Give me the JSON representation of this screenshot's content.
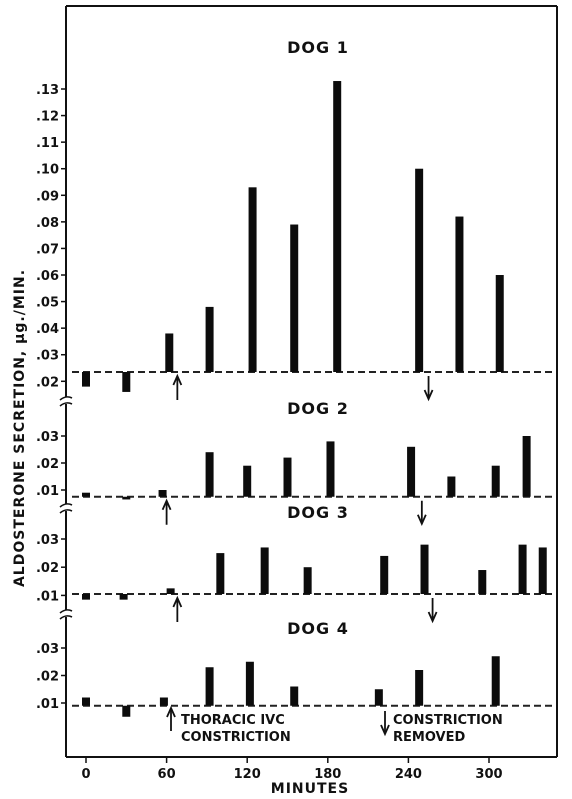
{
  "chart_data": {
    "type": "bar",
    "ylabel": "ALDOSTERONE SECRETION, μg./MIN.",
    "xlabel": "MINUTES",
    "x_ticks": [
      "0",
      "60",
      "120",
      "180",
      "240",
      "300"
    ],
    "x_tick_values": [
      0,
      60,
      120,
      180,
      240,
      300
    ],
    "xlim": [
      -10,
      345
    ],
    "annotations": {
      "arrow_up": "THORACIC IVC CONSTRICTION",
      "arrow_up_line1": "THORACIC IVC",
      "arrow_up_line2": "CONSTRICTION",
      "arrow_down": "CONSTRICTION REMOVED",
      "arrow_down_line1": "CONSTRICTION",
      "arrow_down_line2": "REMOVED"
    },
    "panels": [
      {
        "title": "DOG 1",
        "baseline": 0.0235,
        "ylim": [
          0.015,
          0.1375
        ],
        "y_ticks": [
          ".02",
          ".03",
          ".04",
          ".05",
          ".06",
          ".07",
          ".08",
          ".09",
          ".10",
          ".11",
          ".12",
          ".13"
        ],
        "y_tick_values": [
          0.02,
          0.03,
          0.04,
          0.05,
          0.06,
          0.07,
          0.08,
          0.09,
          0.1,
          0.11,
          0.12,
          0.13
        ],
        "x": [
          0,
          30,
          62,
          92,
          124,
          155,
          187,
          248,
          278,
          308
        ],
        "values": [
          0.018,
          0.016,
          0.038,
          0.048,
          0.093,
          0.079,
          0.133,
          0.1,
          0.082,
          0.06
        ],
        "arrow_up_x": 68,
        "arrow_down_x": 255
      },
      {
        "title": "DOG 2",
        "baseline": 0.0075,
        "ylim": [
          0.002,
          0.036
        ],
        "y_ticks": [
          ".01",
          ".02",
          ".03"
        ],
        "y_tick_values": [
          0.01,
          0.02,
          0.03
        ],
        "x": [
          0,
          30,
          57,
          92,
          120,
          150,
          182,
          242,
          272,
          305,
          328
        ],
        "values": [
          0.009,
          0.0065,
          0.01,
          0.024,
          0.019,
          0.022,
          0.028,
          0.026,
          0.015,
          0.019,
          0.03
        ],
        "arrow_up_x": 60,
        "arrow_down_x": 250
      },
      {
        "title": "DOG 3",
        "baseline": 0.0105,
        "ylim": [
          0.0025,
          0.036
        ],
        "y_ticks": [
          ".01",
          ".02",
          ".03"
        ],
        "y_tick_values": [
          0.01,
          0.02,
          0.03
        ],
        "x": [
          0,
          28,
          63,
          100,
          133,
          165,
          222,
          252,
          295,
          325,
          340
        ],
        "values": [
          0.0085,
          0.0085,
          0.0125,
          0.025,
          0.027,
          0.02,
          0.024,
          0.028,
          0.019,
          0.028,
          0.027
        ],
        "arrow_up_x": 68,
        "arrow_down_x": 258
      },
      {
        "title": "DOG 4",
        "baseline": 0.009,
        "ylim": [
          0.003,
          0.036
        ],
        "y_ticks": [
          ".01",
          ".02",
          ".03"
        ],
        "y_tick_values": [
          0.01,
          0.02,
          0.03
        ],
        "x": [
          0,
          30,
          58,
          92,
          122,
          155,
          218,
          248,
          305
        ],
        "values": [
          0.012,
          0.005,
          0.012,
          0.023,
          0.025,
          0.016,
          0.015,
          0.022,
          0.027
        ]
      }
    ]
  }
}
